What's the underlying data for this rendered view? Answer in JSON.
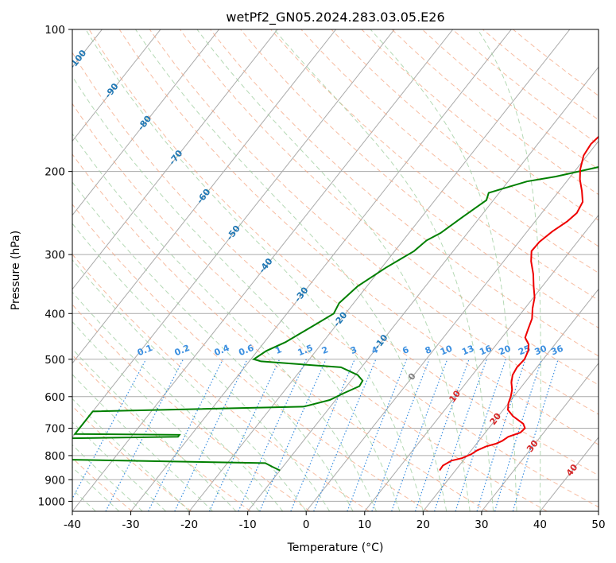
{
  "chart_data": {
    "type": "line",
    "diagram": "skew-T log-P",
    "title": "wetPf2_GN05.2024.283.03.05.E26",
    "xlabel": "Temperature (°C)",
    "ylabel": "Pressure (hPa)",
    "xlim": [
      -40,
      50
    ],
    "ylim": [
      1050,
      100
    ],
    "y_scale": "log",
    "x_ticks": [
      -40,
      -30,
      -20,
      -10,
      0,
      10,
      20,
      30,
      40,
      50
    ],
    "y_ticks": [
      100,
      200,
      300,
      400,
      500,
      600,
      700,
      800,
      900,
      1000
    ],
    "grid": true,
    "colors": {
      "temperature": "#ee0000",
      "dewpoint": "#007f00",
      "isotherm": "#aaaaaa",
      "dry_adiabat": "#f4a582",
      "moist_adiabat": "#9ccc9c",
      "mixing_ratio": "#3b8fe0",
      "label_blue": "#1f77b4",
      "label_red": "#d62728",
      "label_gray": "#808080"
    },
    "isotherm_labels": [
      {
        "text": "-100",
        "at": [
          -100,
          116
        ]
      },
      {
        "text": "-90",
        "at": [
          -90,
          135
        ]
      },
      {
        "text": "-80",
        "at": [
          -80,
          158
        ]
      },
      {
        "text": "-70",
        "at": [
          -70,
          187
        ]
      },
      {
        "text": "-60",
        "at": [
          -60,
          226
        ]
      },
      {
        "text": "-50",
        "at": [
          -50,
          270
        ]
      },
      {
        "text": "-40",
        "at": [
          -40,
          317
        ]
      },
      {
        "text": "-30",
        "at": [
          -30,
          365
        ]
      },
      {
        "text": "-20",
        "at": [
          -20,
          412
        ]
      },
      {
        "text": "-10",
        "at": [
          -10,
          460
        ]
      },
      {
        "text": "0",
        "at": [
          0,
          545
        ]
      },
      {
        "text": "10",
        "at": [
          10,
          600
        ]
      },
      {
        "text": "20",
        "at": [
          20,
          670
        ]
      },
      {
        "text": "30",
        "at": [
          30,
          765
        ]
      },
      {
        "text": "40",
        "at": [
          40,
          860
        ]
      }
    ],
    "mixing_ratio_labels": [
      "0.1",
      "0.2",
      "0.4",
      "0.6",
      "1",
      "1.5",
      "2",
      "3",
      "4",
      "6",
      "8",
      "10",
      "13",
      "16",
      "20",
      "25",
      "30",
      "36"
    ],
    "series": [
      {
        "name": "",
        "role": "temperature",
        "points": [
          [
            17.3,
            860
          ],
          [
            17.2,
            840
          ],
          [
            18.0,
            820
          ],
          [
            19.5,
            810
          ],
          [
            20.5,
            795
          ],
          [
            21.0,
            780
          ],
          [
            22.0,
            765
          ],
          [
            23.3,
            755
          ],
          [
            24.0,
            745
          ],
          [
            24.5,
            730
          ],
          [
            26.0,
            715
          ],
          [
            26.2,
            700
          ],
          [
            25.3,
            685
          ],
          [
            22.5,
            660
          ],
          [
            20.8,
            640
          ],
          [
            20.0,
            620
          ],
          [
            19.5,
            600
          ],
          [
            18.8,
            580
          ],
          [
            17.7,
            560
          ],
          [
            16.9,
            540
          ],
          [
            16.6,
            520
          ],
          [
            16.8,
            500
          ],
          [
            16.3,
            480
          ],
          [
            15.5,
            465
          ],
          [
            14.0,
            450
          ],
          [
            13.3,
            430
          ],
          [
            12.6,
            410
          ],
          [
            11.3,
            390
          ],
          [
            10.2,
            370
          ],
          [
            8.5,
            350
          ],
          [
            6.8,
            330
          ],
          [
            4.7,
            310
          ],
          [
            3.4,
            295
          ],
          [
            3.5,
            282
          ],
          [
            4.3,
            268
          ],
          [
            5.5,
            255
          ],
          [
            6.0,
            245
          ],
          [
            5.5,
            232
          ],
          [
            3.9,
            220
          ],
          [
            2.0,
            208
          ],
          [
            0.7,
            198
          ],
          [
            -0.6,
            185
          ],
          [
            -0.9,
            175
          ],
          [
            -0.4,
            165
          ],
          [
            0.3,
            155
          ],
          [
            1.8,
            145
          ],
          [
            3.0,
            135
          ],
          [
            4.0,
            126
          ],
          [
            4.6,
            118
          ],
          [
            5.7,
            110
          ],
          [
            7.6,
            102
          ],
          [
            8.6,
            100
          ]
        ]
      },
      {
        "name": "",
        "role": "dewpoint",
        "points": [
          [
            -10.0,
            860
          ],
          [
            -11.8,
            845
          ],
          [
            -13.5,
            830
          ],
          [
            -50,
            815
          ],
          [
            -50,
            735
          ],
          [
            -32.0,
            730
          ],
          [
            -32.0,
            723
          ],
          [
            -50,
            720
          ],
          [
            -50,
            645
          ],
          [
            -14.5,
            630
          ],
          [
            -11.0,
            610
          ],
          [
            -9.5,
            590
          ],
          [
            -7.8,
            570
          ],
          [
            -8.0,
            555
          ],
          [
            -9.6,
            540
          ],
          [
            -13.5,
            520
          ],
          [
            -28.0,
            505
          ],
          [
            -29.5,
            500
          ],
          [
            -28.5,
            480
          ],
          [
            -26.4,
            460
          ],
          [
            -23.5,
            420
          ],
          [
            -22.0,
            400
          ],
          [
            -22.5,
            380
          ],
          [
            -21.6,
            350
          ],
          [
            -19.3,
            320
          ],
          [
            -16.7,
            295
          ],
          [
            -16.0,
            280
          ],
          [
            -14.6,
            270
          ],
          [
            -13.0,
            250
          ],
          [
            -11.2,
            230
          ],
          [
            -11.8,
            222
          ],
          [
            -6.8,
            210
          ],
          [
            -2.5,
            205
          ],
          [
            4.0,
            195
          ],
          [
            8.5,
            185
          ],
          [
            11.5,
            175
          ],
          [
            14.0,
            165
          ],
          [
            16.5,
            155
          ],
          [
            20.6,
            145
          ],
          [
            24.5,
            135
          ],
          [
            28.0,
            125
          ],
          [
            31.5,
            115
          ],
          [
            35.4,
            105
          ],
          [
            37.0,
            100
          ]
        ]
      }
    ]
  }
}
